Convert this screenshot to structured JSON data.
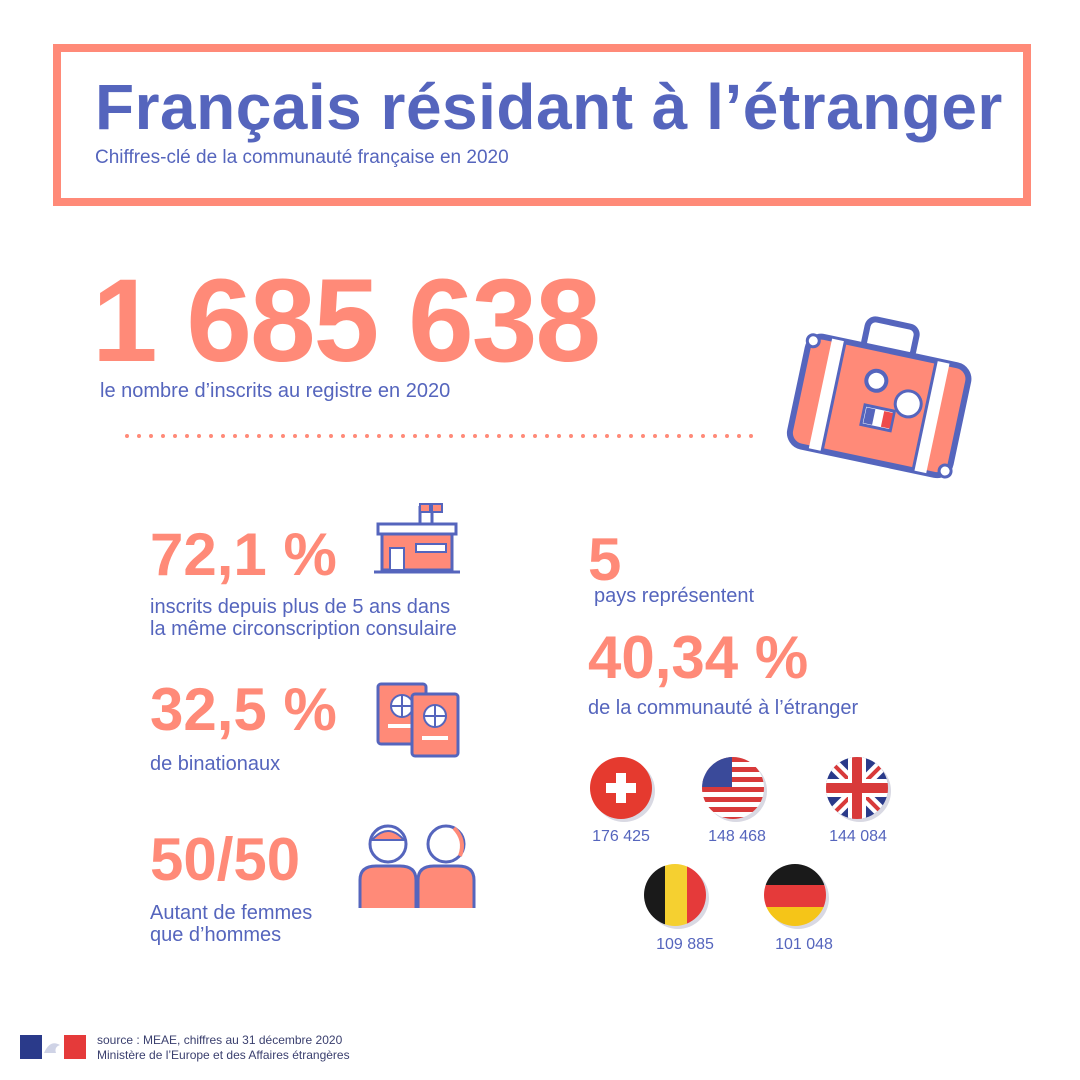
{
  "header": {
    "title": "Français résidant à l’étranger",
    "subtitle": "Chiffres-clé de la communauté française en 2020"
  },
  "headline": {
    "value": "1 685 638",
    "label": "le nombre d’inscrits au registre en 2020"
  },
  "stats": [
    {
      "value": "72,1 %",
      "label_line1": "inscrits depuis plus de 5 ans dans",
      "label_line2": "la même circonscription consulaire",
      "icon": "consulate-building-icon"
    },
    {
      "value": "32,5 %",
      "label_line1": "de binationaux",
      "icon": "passports-icon"
    },
    {
      "value": "50/50",
      "label_line1": "Autant de femmes",
      "label_line2": "que d’hommes",
      "icon": "people-icon"
    }
  ],
  "countries": {
    "count": "5",
    "count_label": "pays représentent",
    "share": "40,34 %",
    "share_label": "de la communauté à l’étranger",
    "flags": [
      {
        "name": "switzerland-flag-icon",
        "value": "176 425"
      },
      {
        "name": "usa-flag-icon",
        "value": "148 468"
      },
      {
        "name": "uk-flag-icon",
        "value": "144 084"
      },
      {
        "name": "belgium-flag-icon",
        "value": "109 885"
      },
      {
        "name": "germany-flag-icon",
        "value": "101 048"
      }
    ]
  },
  "footer": {
    "source": "source : MEAE, chiffres au 31 décembre 2020",
    "ministry": "Ministère de l’Europe et des Affaires étrangères"
  },
  "colors": {
    "blue": "#5565bd",
    "salmon": "#ff8a78"
  }
}
